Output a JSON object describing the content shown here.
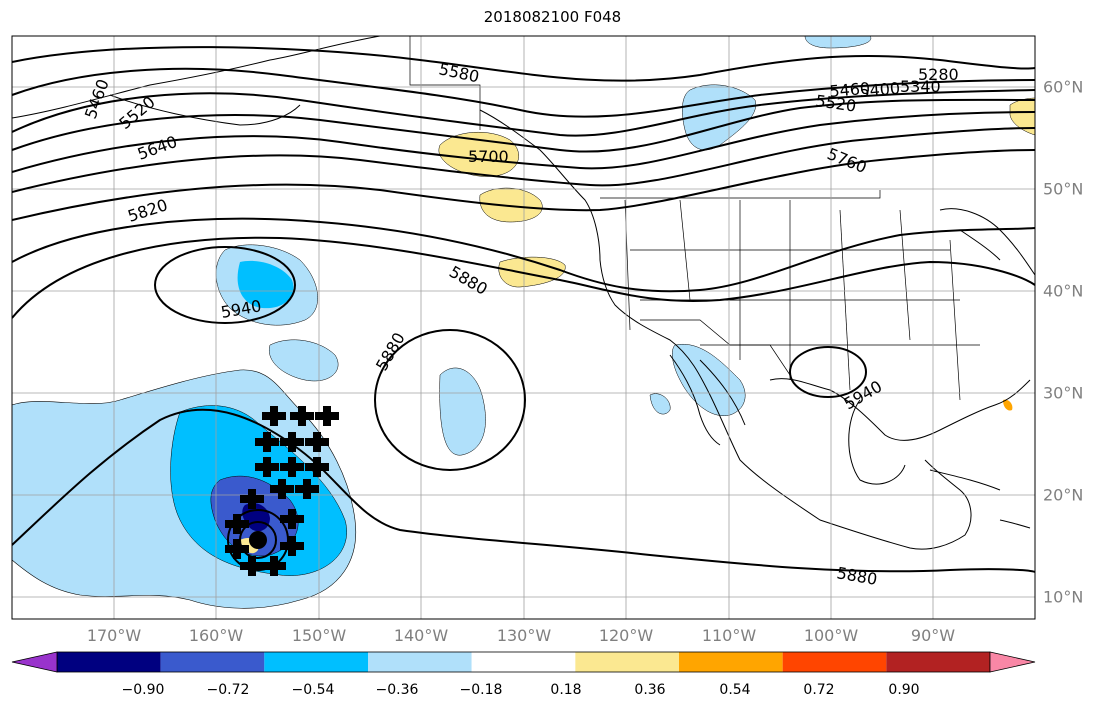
{
  "title": "2018082100 F048",
  "map": {
    "lon_labels": [
      "170°W",
      "160°W",
      "150°W",
      "140°W",
      "130°W",
      "120°W",
      "110°W",
      "100°W",
      "90°W"
    ],
    "lat_labels": [
      "60°N",
      "50°N",
      "40°N",
      "30°N",
      "20°N",
      "10°N"
    ],
    "contour_labels": [
      "5460",
      "5520",
      "5640",
      "5820",
      "5580",
      "5700",
      "5760",
      "5880",
      "5940",
      "5880",
      "5940",
      "5880",
      "5280",
      "5340",
      "5400",
      "5460",
      "5520"
    ],
    "contour_color": "#000000",
    "grid_color": "#a0a0a0"
  },
  "colorbar": {
    "tick_labels": [
      "−0.90",
      "−0.72",
      "−0.54",
      "−0.36",
      "−0.18",
      "0.18",
      "0.36",
      "0.54",
      "0.72",
      "0.90"
    ],
    "colors": [
      "#9933cc",
      "#000080",
      "#3a5acd",
      "#00bfff",
      "#b0e0fa",
      "#ffffff",
      "#fbe891",
      "#ffa500",
      "#ff4500",
      "#b22222",
      "#f987a6"
    ]
  }
}
